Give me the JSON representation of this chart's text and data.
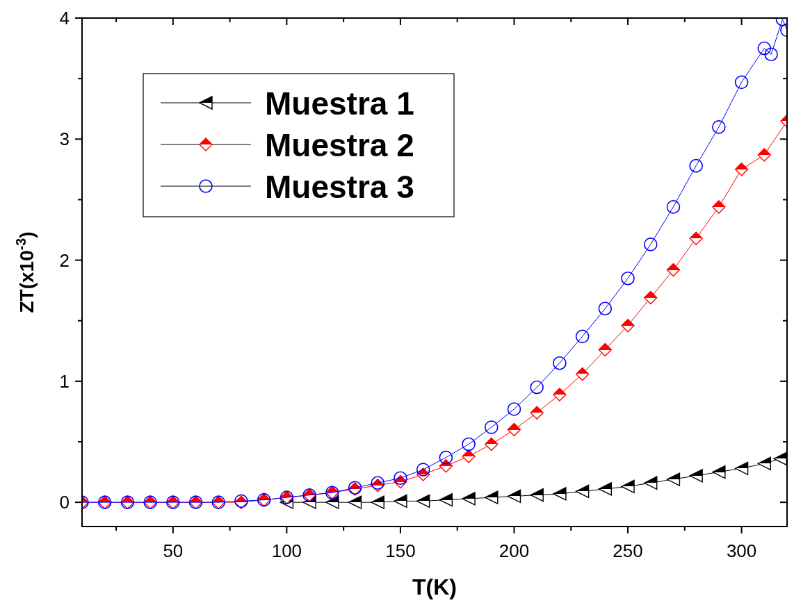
{
  "chart_data": {
    "type": "line",
    "xlabel": "T(K)",
    "ylabel": "ZT(x10$^{-3}$)",
    "xlim": [
      10,
      320
    ],
    "ylim": [
      -0.2,
      4
    ],
    "xticks": [
      {
        "value": 25,
        "label": null
      },
      50,
      {
        "value": 75,
        "label": null
      },
      100,
      {
        "value": 125,
        "label": null
      },
      150,
      {
        "value": 175,
        "label": null
      },
      200,
      {
        "value": 225,
        "label": null
      },
      250,
      {
        "value": 275,
        "label": null
      },
      300
    ],
    "yticks": [
      0,
      {
        "value": 0.5,
        "label": null
      },
      1,
      {
        "value": 1.5,
        "label": null
      },
      2,
      {
        "value": 2.5,
        "label": null
      },
      3,
      {
        "value": 3.5,
        "label": null
      },
      4
    ],
    "grid": false,
    "legend": "top left",
    "line_style": "solid",
    "series": [
      {
        "name": "Muestra 1",
        "color": "#000000",
        "marker": "triangle",
        "x": [
          100,
          110,
          120,
          130,
          140,
          150,
          160,
          170,
          180,
          190,
          200,
          210,
          220,
          230,
          240,
          250,
          260,
          270,
          280,
          290,
          300,
          310,
          317
        ],
        "values": [
          0,
          0,
          0,
          0,
          0,
          0.01,
          0.01,
          0.02,
          0.03,
          0.04,
          0.05,
          0.06,
          0.07,
          0.09,
          0.11,
          0.13,
          0.16,
          0.19,
          0.22,
          0.25,
          0.28,
          0.32,
          0.36
        ]
      },
      {
        "name": "Muestra 2",
        "color": "#ff0000",
        "marker": "diamond",
        "x": [
          10,
          20,
          30,
          40,
          50,
          60,
          70,
          80,
          90,
          100,
          110,
          120,
          130,
          140,
          150,
          160,
          170,
          180,
          190,
          200,
          210,
          220,
          230,
          240,
          250,
          260,
          270,
          280,
          290,
          300,
          310,
          320
        ],
        "values": [
          0,
          0,
          0,
          0,
          0,
          0,
          0,
          0,
          0.02,
          0.04,
          0.06,
          0.08,
          0.11,
          0.14,
          0.17,
          0.23,
          0.3,
          0.38,
          0.48,
          0.6,
          0.74,
          0.89,
          1.06,
          1.26,
          1.46,
          1.69,
          1.92,
          2.18,
          2.44,
          2.75,
          2.87,
          3.15
        ]
      },
      {
        "name": "Muestra 3",
        "color": "#0000ff",
        "marker": "circle",
        "x": [
          10,
          20,
          30,
          40,
          50,
          60,
          70,
          80,
          90,
          100,
          110,
          120,
          130,
          140,
          150,
          160,
          170,
          180,
          190,
          200,
          210,
          220,
          230,
          240,
          250,
          260,
          270,
          280,
          290,
          300,
          310,
          313,
          318,
          320
        ],
        "values": [
          0,
          0,
          0,
          0,
          0,
          0,
          0,
          0.01,
          0.02,
          0.04,
          0.06,
          0.08,
          0.12,
          0.16,
          0.2,
          0.27,
          0.37,
          0.48,
          0.62,
          0.77,
          0.95,
          1.15,
          1.37,
          1.6,
          1.85,
          2.13,
          2.44,
          2.78,
          3.1,
          3.47,
          3.75,
          3.7,
          3.99,
          3.9
        ]
      }
    ]
  }
}
